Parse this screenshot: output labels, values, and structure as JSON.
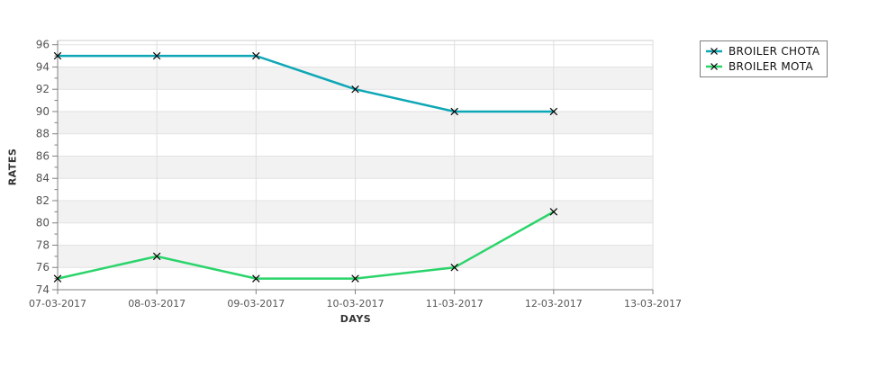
{
  "chart_data": {
    "type": "line",
    "title": "",
    "xlabel": "DAYS",
    "ylabel": "RATES",
    "categories": [
      "07-03-2017",
      "08-03-2017",
      "09-03-2017",
      "10-03-2017",
      "11-03-2017",
      "12-03-2017",
      "13-03-2017"
    ],
    "ylim": [
      74,
      96
    ],
    "ytick_step": 2,
    "yticks": [
      96,
      94,
      92,
      90,
      88,
      86,
      84,
      82,
      80,
      78,
      76,
      74
    ],
    "grid": "alternating horizontal bands every 2 units, vertical gridlines at each date",
    "legend_position": "top-right",
    "marker": "x-cross",
    "series": [
      {
        "name": "BROILER CHOTA",
        "color": "#0ea7b5",
        "values": [
          95,
          95,
          95,
          92,
          90,
          90
        ]
      },
      {
        "name": "BROILER MOTA",
        "color": "#2bd46b",
        "values": [
          75,
          77,
          75,
          75,
          76,
          81
        ]
      }
    ],
    "note_visible_data_only": "no data points on 13-03-2017"
  },
  "palette": {
    "band_gray": "#f2f2f2",
    "grid_color": "#e2e2e2",
    "vgrid_color": "#dedede",
    "top_border_color": "#cccccc",
    "axis_color": "#808080",
    "marker_color": "#000000",
    "background": "#ffffff"
  }
}
